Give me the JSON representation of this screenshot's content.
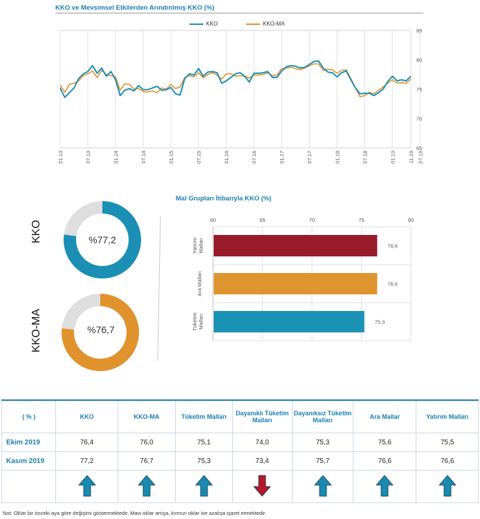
{
  "line_chart_title": "KKO ve Mevsimsel Etkilerden Arındırılmış KKO (%)",
  "bar_chart_title": "Mal Grupları İtibarıyla KKO (%)",
  "colors": {
    "kko": "#1b8fb4",
    "kko_ma": "#e0922c",
    "bar_yatirim": "#981b2c",
    "bar_ara": "#de9530",
    "bar_tuketim": "#1a92b4",
    "arrow_up": "#1a8ab0",
    "arrow_down": "#b3182c",
    "title_blue": "#1b7fb1"
  },
  "donuts": [
    {
      "label": "KKO",
      "value_text": "%77,2",
      "value": 77.2
    },
    {
      "label": "KKO-MA",
      "value_text": "%76,7",
      "value": 76.7
    }
  ],
  "chart_data": [
    {
      "type": "line",
      "title": "KKO ve Mevsimsel Etkilerden Arındırılmış KKO (%)",
      "ylim": [
        65,
        85
      ],
      "yticks": [
        "65",
        "70",
        "75",
        "80",
        "85"
      ],
      "xticks": [
        "01.13",
        "07.13",
        "01.14",
        "07.14",
        "01.15",
        "07.15",
        "01.16",
        "07.16",
        "01.17",
        "07.17",
        "01.18",
        "07.18",
        "01.19",
        "07.19",
        "11.19"
      ],
      "legend": [
        "KKO",
        "KKO-MA"
      ],
      "legend_position": "top",
      "grid": "vertical",
      "series": [
        {
          "name": "KKO",
          "values": [
            75.2,
            73.6,
            74.4,
            75.2,
            76.8,
            77.6,
            78.0,
            79.0,
            77.7,
            78.6,
            77.2,
            78.0,
            76.6,
            73.9,
            74.8,
            75.1,
            74.7,
            75.6,
            74.9,
            74.9,
            75.2,
            75.5,
            74.8,
            74.9,
            75.3,
            74.2,
            74.0,
            76.8,
            77.6,
            77.4,
            78.5,
            77.2,
            77.9,
            78.0,
            77.8,
            76.0,
            76.4,
            77.0,
            77.6,
            77.8,
            77.2,
            76.2,
            77.7,
            77.7,
            77.8,
            78.0,
            77.0,
            77.0,
            78.1,
            78.8,
            79.0,
            78.9,
            78.6,
            78.7,
            79.2,
            79.7,
            79.8,
            78.6,
            77.9,
            77.8,
            77.1,
            77.8,
            78.1,
            76.6,
            75.2,
            74.2,
            74.3,
            74.3,
            73.9,
            74.4,
            75.0,
            76.3,
            77.2,
            76.4,
            76.6,
            76.4,
            77.2
          ]
        },
        {
          "name": "KKO-MA",
          "values": [
            75.7,
            74.5,
            75.8,
            76.0,
            76.4,
            77.3,
            77.6,
            78.1,
            77.0,
            78.2,
            77.5,
            77.3,
            77.1,
            74.8,
            75.9,
            75.8,
            75.0,
            75.1,
            74.6,
            74.5,
            74.7,
            74.4,
            75.2,
            75.0,
            75.8,
            75.1,
            75.4,
            77.0,
            77.3,
            77.1,
            77.8,
            76.9,
            77.5,
            77.8,
            77.4,
            76.7,
            77.6,
            77.6,
            77.2,
            77.3,
            77.2,
            76.9,
            77.4,
            77.4,
            77.5,
            77.8,
            77.3,
            77.4,
            78.5,
            78.6,
            78.7,
            78.5,
            78.3,
            78.6,
            79.0,
            79.3,
            79.3,
            78.2,
            78.4,
            78.3,
            77.7,
            78.2,
            78.3,
            76.8,
            75.2,
            73.7,
            73.9,
            74.5,
            74.2,
            74.8,
            75.4,
            76.0,
            76.6,
            76.0,
            76.1,
            76.0,
            76.7
          ]
        }
      ]
    },
    {
      "type": "bar",
      "orientation": "horizontal",
      "title": "Mal Grupları İtibarıyla KKO (%)",
      "xlim": [
        60,
        80
      ],
      "xticks": [
        "60",
        "65",
        "70",
        "75",
        "80"
      ],
      "categories": [
        "Yatırım Malları",
        "Ara Malları",
        "Tüketim Malları"
      ],
      "category_lines": [
        [
          "Yatırım",
          "Malları"
        ],
        [
          "Ara Malları"
        ],
        [
          "Tüketim",
          "Malları"
        ]
      ],
      "values": [
        76.6,
        76.6,
        75.3
      ],
      "value_labels": [
        "76,6",
        "76,6",
        "75,3"
      ]
    }
  ],
  "table": {
    "headers": [
      [
        "( % )"
      ],
      [
        "KKO"
      ],
      [
        "KKO-MA"
      ],
      [
        "Tüketim Malları"
      ],
      [
        "Dayanıklı Tüketim",
        "Malları"
      ],
      [
        "Dayanıksız Tüketim",
        "Malları"
      ],
      [
        "Ara Mallar"
      ],
      [
        "Yatırım Malları"
      ]
    ],
    "rows": [
      {
        "label": "Ekim 2019",
        "values": [
          "76,4",
          "76,0",
          "75,1",
          "74,0",
          "75,3",
          "75,6",
          "75,5"
        ]
      },
      {
        "label": "Kasım 2019",
        "values": [
          "77,2",
          "76,7",
          "75,3",
          "73,4",
          "75,7",
          "76,6",
          "76,6"
        ]
      }
    ],
    "arrows": [
      "up",
      "up",
      "up",
      "down",
      "up",
      "up",
      "up"
    ]
  },
  "note": "Not: Oklar bir önceki aya göre değişimi göstermektedir. Mavi oklar artışa, kırmızı oklar ise azalışa işaret etmektedir."
}
